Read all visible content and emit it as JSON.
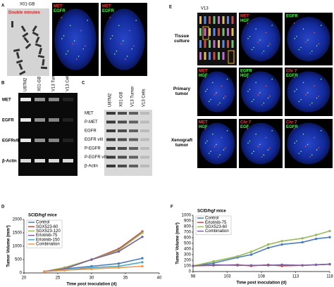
{
  "panels": {
    "a": {
      "letter": "A",
      "title": "X01-GB",
      "annotation": "Double minutes",
      "image_labels": [
        [
          {
            "text": "MET",
            "color": "#ff3b3b"
          },
          {
            "text": "EGFR",
            "color": "#3bff3b"
          }
        ],
        [
          {
            "text": "MET",
            "color": "#ff3b3b"
          },
          {
            "text": "EGFR",
            "color": "#3bff3b"
          }
        ]
      ]
    },
    "b": {
      "letter": "B",
      "lanes": [
        "U87M2",
        "X01-GB",
        "V13 Tumor",
        "V13 Cells"
      ],
      "rows": [
        "MET",
        "EGFR",
        "EGFRvIII",
        "β-Actin"
      ]
    },
    "c": {
      "letter": "C",
      "lanes": [
        "U87M2",
        "X01-GB",
        "V13 Tumor",
        "V13 Cells"
      ],
      "rows": [
        "MET",
        "P-MET",
        "EGFR",
        "EGFR vIII",
        "P-EGFR",
        "P-EGFR vIII",
        "β-Actin"
      ]
    },
    "d": {
      "letter": "D"
    },
    "e": {
      "letter": "E",
      "title": "V13",
      "rows": [
        "Tissue culture",
        "Primary tumor",
        "Xenograft tumor"
      ],
      "image_labels": [
        [
          [],
          [
            {
              "text": "MET",
              "color": "#ff3b3b"
            },
            {
              "text": "HGF",
              "color": "#3bff3b"
            }
          ],
          [
            {
              "text": "EGFR",
              "color": "#3bff3b"
            }
          ]
        ],
        [
          [
            {
              "text": "MET",
              "color": "#ff3b3b"
            },
            {
              "text": "HGF",
              "color": "#3bff3b"
            }
          ],
          [
            {
              "text": "EGFR",
              "color": "#3bff3b"
            },
            {
              "text": "HGF",
              "color": "#3bff3b"
            }
          ],
          [
            {
              "text": "Chr 7",
              "color": "#ff3b3b"
            },
            {
              "text": "EGFR",
              "color": "#3bff3b"
            }
          ]
        ],
        [
          [
            {
              "text": "MET",
              "color": "#ff3b3b"
            },
            {
              "text": "HGF",
              "color": "#3bff3b"
            }
          ],
          [
            {
              "text": "Chr 7",
              "color": "#ff3b3b"
            },
            {
              "text": "EGF",
              "color": "#3bff3b"
            }
          ],
          [
            {
              "text": "Chr 7",
              "color": "#ff3b3b"
            },
            {
              "text": "EGFR",
              "color": "#3bff3b"
            }
          ]
        ]
      ]
    },
    "f": {
      "letter": "F"
    }
  },
  "chart_data": [
    {
      "type": "line",
      "title": "SCID/hgf mice",
      "x_label": "Time post inoculation (d)",
      "y_label": "Tumor Volume (mm³)",
      "x": [
        23,
        26,
        30,
        34,
        37.5
      ],
      "xlim": [
        20,
        40
      ],
      "xticks": [
        20,
        25,
        30,
        35,
        40
      ],
      "ylim": [
        0,
        2000
      ],
      "yticks": [
        0,
        500,
        1000,
        1500,
        2000
      ],
      "legend": "upper left",
      "series": [
        {
          "name": "Control",
          "color": "#4a7ebb",
          "values": [
            50,
            150,
            250,
            350,
            550
          ]
        },
        {
          "name": "SGX523-60",
          "color": "#be4b48",
          "values": [
            50,
            200,
            500,
            900,
            1550
          ]
        },
        {
          "name": "SGX523-120",
          "color": "#98b954",
          "values": [
            50,
            200,
            500,
            850,
            1500
          ]
        },
        {
          "name": "Erlotinib-75",
          "color": "#7d60a0",
          "values": [
            50,
            150,
            500,
            800,
            1350
          ]
        },
        {
          "name": "Erlotinib-150",
          "color": "#46aac5",
          "values": [
            50,
            100,
            200,
            250,
            400
          ]
        },
        {
          "name": "Combination",
          "color": "#f79646",
          "values": [
            50,
            100,
            150,
            200,
            250
          ]
        }
      ]
    },
    {
      "type": "line",
      "title": "SCID/hgf mice",
      "x_label": "Time post inoculation (d)",
      "y_label": "Tumor Volume (mm³)",
      "x": [
        98,
        101,
        104.5,
        106.5,
        109,
        111,
        114,
        116,
        118
      ],
      "xlim": [
        98,
        118
      ],
      "xticks": [
        98,
        103,
        108,
        113,
        118
      ],
      "ylim": [
        0,
        1000
      ],
      "yticks": [
        0,
        100,
        200,
        300,
        400,
        500,
        600,
        700,
        800,
        900,
        1000
      ],
      "legend": "upper left",
      "series": [
        {
          "name": "Control",
          "color": "#4a7ebb",
          "values": [
            100,
            150,
            250,
            300,
            420,
            480,
            520,
            580,
            610
          ]
        },
        {
          "name": "Erlotinib-75",
          "color": "#be4b48",
          "values": [
            100,
            110,
            120,
            100,
            120,
            100,
            110,
            120,
            130
          ]
        },
        {
          "name": "SGX523-60",
          "color": "#98b954",
          "values": [
            100,
            180,
            270,
            350,
            480,
            540,
            590,
            650,
            720
          ]
        },
        {
          "name": "Combination",
          "color": "#7d60a0",
          "values": [
            100,
            120,
            110,
            110,
            110,
            120,
            110,
            120,
            130
          ]
        }
      ]
    }
  ]
}
